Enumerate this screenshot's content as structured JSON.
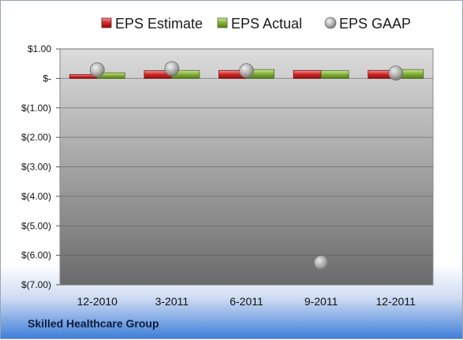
{
  "chart_data": {
    "type": "bar",
    "categories": [
      "12-2010",
      "3-2011",
      "6-2011",
      "9-2011",
      "12-2011"
    ],
    "series": [
      {
        "name": "EPS Estimate",
        "kind": "bar",
        "color": "#cc2020",
        "values": [
          0.13,
          0.26,
          0.27,
          0.27,
          0.27
        ]
      },
      {
        "name": "EPS Actual",
        "kind": "bar",
        "color": "#7ea832",
        "values": [
          0.19,
          0.27,
          0.3,
          0.26,
          0.3
        ]
      },
      {
        "name": "EPS GAAP",
        "kind": "marker",
        "color": "#b0b0b0",
        "values": [
          0.29,
          0.33,
          0.26,
          -6.25,
          0.18
        ]
      }
    ],
    "ylim": [
      -7,
      1
    ],
    "yticks": [
      1,
      0,
      -1,
      -2,
      -3,
      -4,
      -5,
      -6,
      -7
    ],
    "ytick_labels": [
      "$1.00",
      "$-",
      "$(1.00)",
      "$(2.00)",
      "$(3.00)",
      "$(4.00)",
      "$(5.00)",
      "$(6.00)",
      "$(7.00)"
    ],
    "legend_position": "top",
    "grid": true
  },
  "footer": {
    "company": "Skilled Healthcare Group"
  }
}
